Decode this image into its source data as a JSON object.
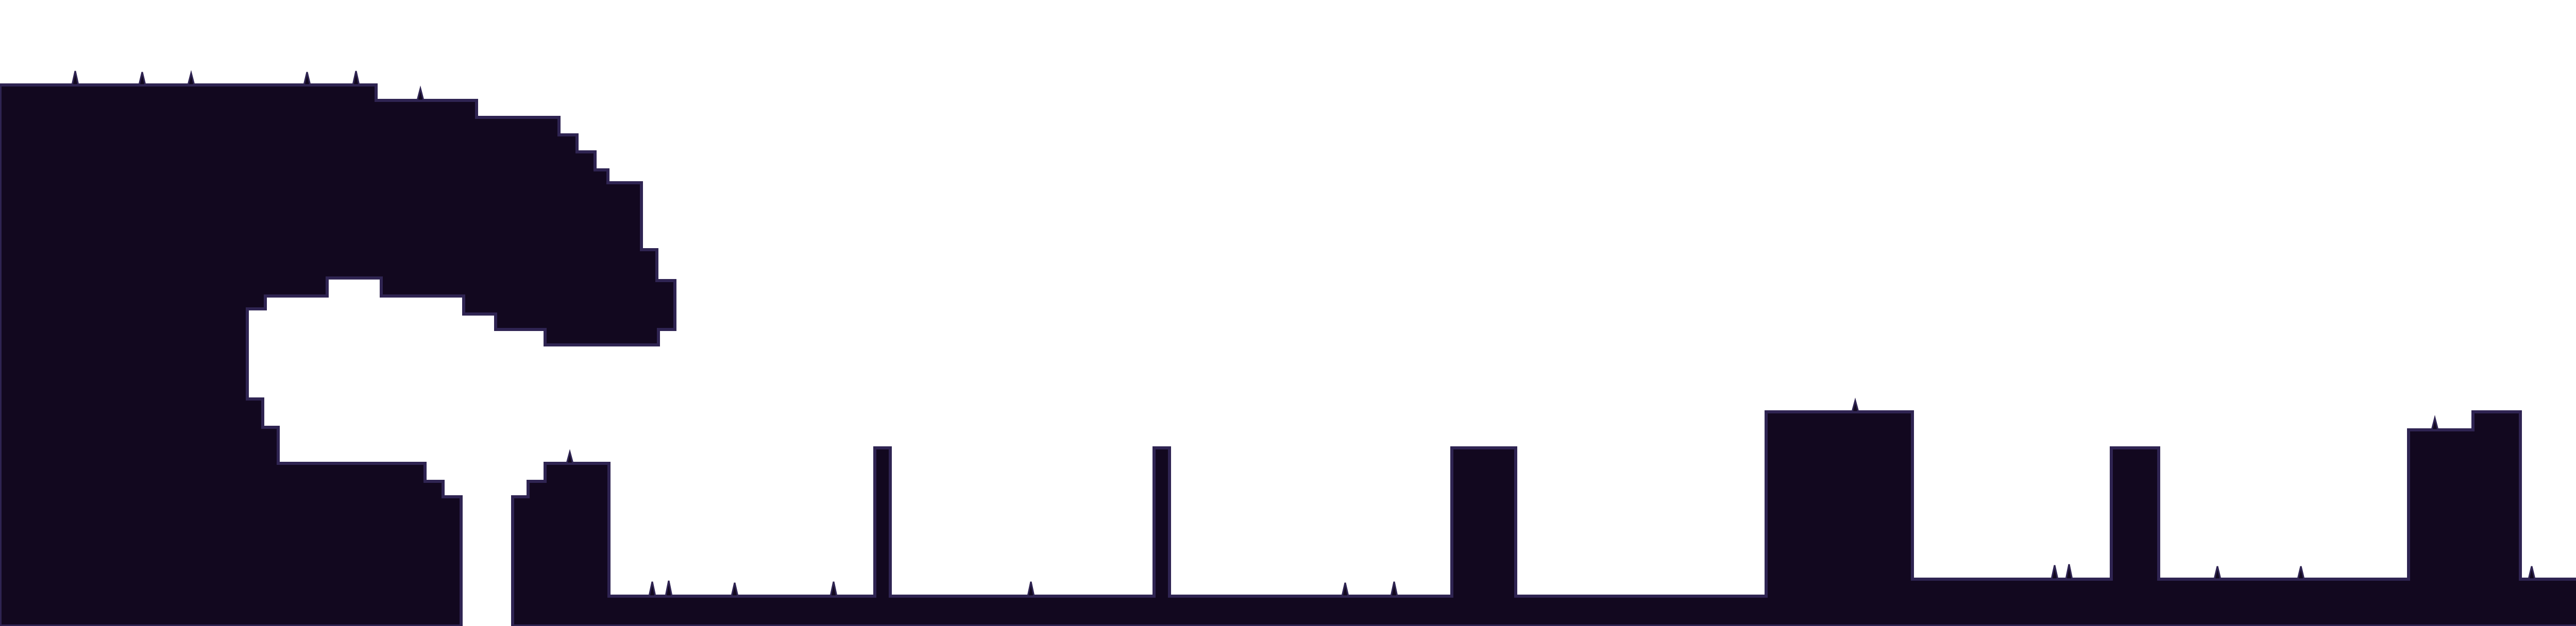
{
  "scene": {
    "background_color": "#ffffff",
    "fill_color": "#12081f",
    "edge_color": "#2f2452"
  }
}
